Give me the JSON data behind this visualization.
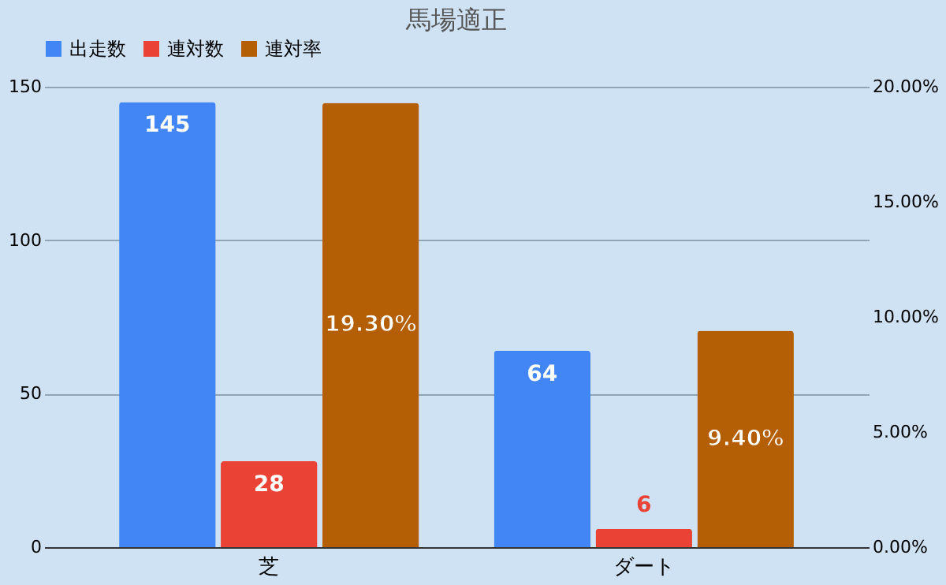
{
  "chart_data": {
    "type": "bar",
    "title": "馬場適正",
    "categories": [
      "芝",
      "ダート"
    ],
    "series": [
      {
        "name": "出走数",
        "color": "#4285f4",
        "values": [
          145,
          64
        ],
        "value_labels": [
          "145",
          "64"
        ]
      },
      {
        "name": "連対数",
        "color": "#ea4335",
        "values": [
          28,
          6
        ],
        "value_labels": [
          "28",
          "6"
        ]
      },
      {
        "name": "連対率",
        "color": "#b45f06",
        "values": [
          19.3,
          9.4
        ],
        "axis": "y2",
        "value_labels": [
          "19.30%",
          "9.40%"
        ]
      }
    ],
    "ylim": [
      0,
      150
    ],
    "yticks": [
      0,
      50,
      100,
      150
    ],
    "y2lim": [
      0,
      20
    ],
    "y2ticks": [
      {
        "value": 0,
        "label": "0.00%"
      },
      {
        "value": 5,
        "label": "5.00%"
      },
      {
        "value": 10,
        "label": "10.00%"
      },
      {
        "value": 15,
        "label": "15.00%"
      },
      {
        "value": 20,
        "label": "20.00%"
      }
    ],
    "grid": "y",
    "legend": "top"
  }
}
